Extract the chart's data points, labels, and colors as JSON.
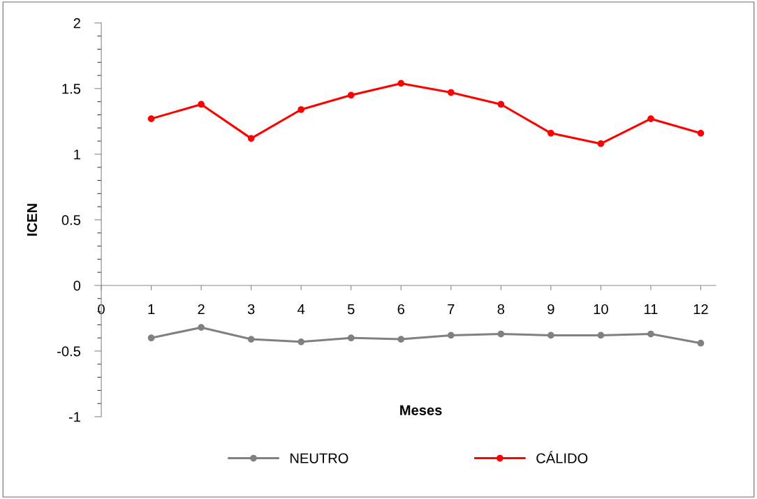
{
  "chart_data": {
    "type": "line",
    "xlabel": "Meses",
    "ylabel": "ICEN",
    "x": [
      1,
      2,
      3,
      4,
      5,
      6,
      7,
      8,
      9,
      10,
      11,
      12
    ],
    "series": [
      {
        "name": "NEUTRO",
        "color": "#808080",
        "values": [
          -0.4,
          -0.32,
          -0.41,
          -0.43,
          -0.4,
          -0.41,
          -0.38,
          -0.37,
          -0.38,
          -0.38,
          -0.37,
          -0.44
        ]
      },
      {
        "name": "CÁLIDO",
        "color": "#ff0000",
        "values": [
          1.27,
          1.38,
          1.12,
          1.34,
          1.45,
          1.54,
          1.47,
          1.38,
          1.16,
          1.08,
          1.27,
          1.16
        ]
      }
    ],
    "xlim": [
      0,
      12.3
    ],
    "xticks": [
      0,
      1,
      2,
      3,
      4,
      5,
      6,
      7,
      8,
      9,
      10,
      11,
      12
    ],
    "ylim": [
      -1,
      2
    ],
    "yticks": [
      -1,
      -0.5,
      0,
      0.5,
      1,
      1.5,
      2
    ],
    "grid": false,
    "legend": "bottom",
    "marker": "circle",
    "line_style": "solid"
  }
}
